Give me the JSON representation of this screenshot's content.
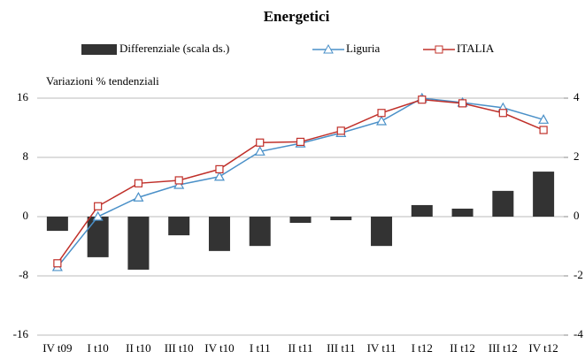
{
  "chart_data": {
    "type": "bar_line_combo",
    "title": "Energetici",
    "y_axis_label": "Variazioni % tendenziali",
    "categories": [
      "IV t09",
      "I t10",
      "II t10",
      "III t10",
      "IV t10",
      "I t11",
      "II t11",
      "III t11",
      "IV t11",
      "I t12",
      "II t12",
      "III t12",
      "IV t12"
    ],
    "ylim": [
      -16,
      16
    ],
    "yticks": [
      -16,
      -8,
      0,
      8,
      16
    ],
    "y2lim": [
      -4,
      4
    ],
    "y2ticks": [
      -4,
      -2,
      0,
      2,
      4
    ],
    "grid": true,
    "series": [
      {
        "name": "Differenziale (scala ds.)",
        "kind": "bar",
        "axis": "y2",
        "color": "#333333",
        "values": [
          -0.48,
          -1.37,
          -1.79,
          -0.63,
          -1.16,
          -0.99,
          -0.21,
          -0.12,
          -0.99,
          0.39,
          0.27,
          0.87,
          1.52
        ]
      },
      {
        "name": "Liguria",
        "kind": "line",
        "marker": "triangle",
        "color": "#4a90c8",
        "values": [
          -6.8,
          0,
          2.6,
          4.3,
          5.4,
          8.8,
          9.9,
          11.3,
          12.9,
          16.0,
          15.4,
          14.7,
          13.1
        ]
      },
      {
        "name": "ITALIA",
        "kind": "line",
        "marker": "square",
        "color": "#c0302a",
        "values": [
          -6.3,
          1.4,
          4.5,
          4.9,
          6.4,
          10.0,
          10.1,
          11.6,
          14.0,
          15.8,
          15.3,
          14.0,
          11.7
        ]
      }
    ]
  }
}
